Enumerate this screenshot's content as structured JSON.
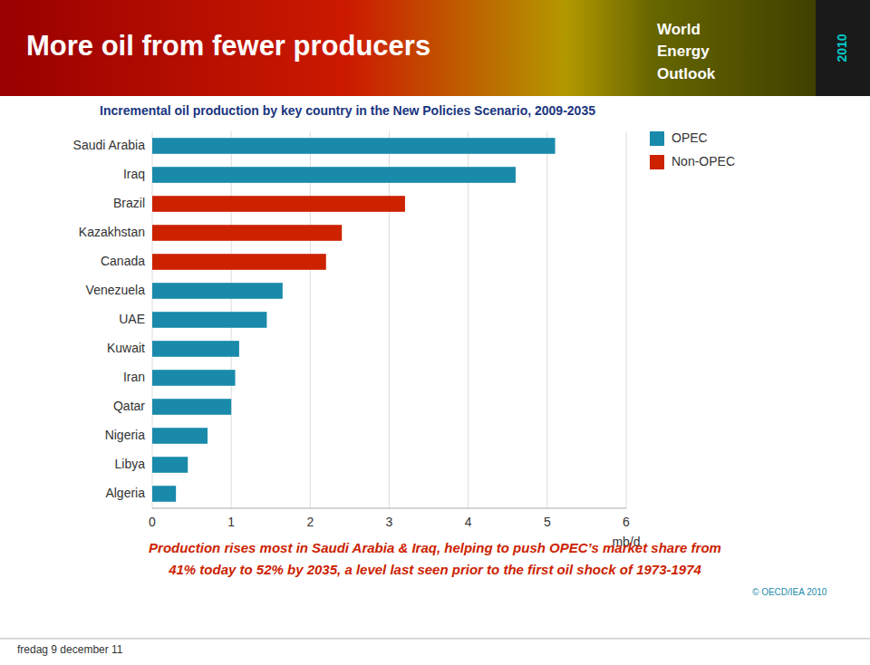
{
  "chart_data": {
    "type": "bar",
    "orientation": "horizontal",
    "stacked": true,
    "title": "Incremental oil production by key country in the New Policies Scenario, 2009-2035",
    "subtitle": "More oil from fewer producers",
    "categories": [
      "Saudi Arabia",
      "Iraq",
      "Brazil",
      "Kazakhstan",
      "Canada",
      "Venezuela",
      "UAE",
      "Kuwait",
      "Iran",
      "Qatar",
      "Nigeria",
      "Libya",
      "Algeria"
    ],
    "series": [
      {
        "name": "OPEC",
        "color": "#1a8aab",
        "values": [
          5.1,
          4.6,
          null,
          null,
          null,
          1.65,
          1.45,
          1.1,
          1.05,
          1.0,
          0.7,
          0.45,
          0.3
        ]
      },
      {
        "name": "Non-OPEC",
        "color": "#cc2200",
        "values": [
          null,
          null,
          3.2,
          2.4,
          2.2,
          null,
          null,
          null,
          null,
          null,
          null,
          null,
          null
        ]
      }
    ],
    "xlim": [
      0,
      6
    ],
    "xticks": [
      0,
      1,
      2,
      3,
      4,
      5,
      6
    ],
    "xlabel": "mb/d",
    "grid": true,
    "legend": "right",
    "annotations": [
      "World",
      "Energy",
      "Outlook",
      "2010",
      "Production rises most in Saudi Arabia & Iraq, helping to push OPEC’s market share from",
      "41% today to 52% by 2035, a level last seen prior to the first oil shock of 1973-1974",
      "© OECD/IEA 2010",
      "fredag 9 december 11"
    ]
  }
}
